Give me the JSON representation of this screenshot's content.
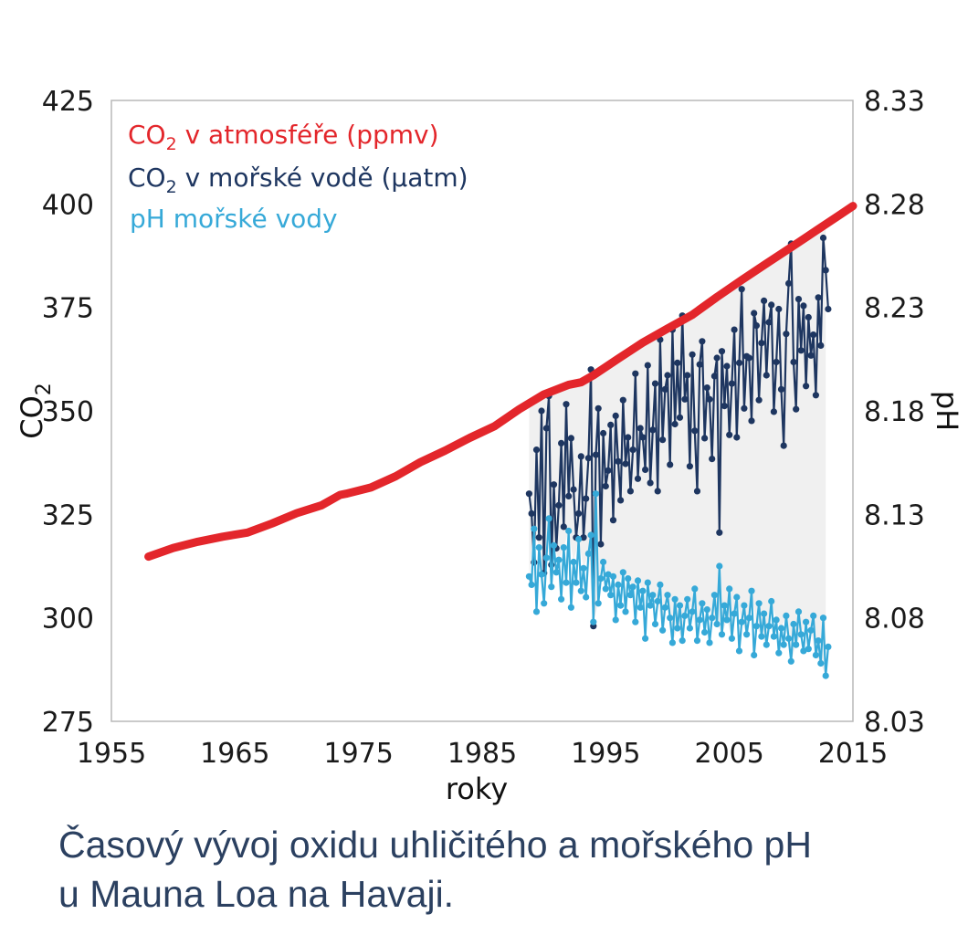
{
  "chart_data": {
    "type": "line",
    "xlabel": "roky",
    "ylabel_left": "CO",
    "ylabel_left_sub": "2",
    "ylabel_right": "pH",
    "xlim": [
      1955,
      2015
    ],
    "ylim_left": [
      275,
      425
    ],
    "ylim_right": [
      8.03,
      8.33
    ],
    "x_ticks": [
      "1955",
      "1965",
      "1975",
      "1985",
      "1995",
      "2005",
      "2015"
    ],
    "y_ticks_left": [
      "275",
      "300",
      "325",
      "350",
      "375",
      "400",
      "425"
    ],
    "y_ticks_right": [
      "8.03",
      "8.08",
      "8.13",
      "8.18",
      "8.23",
      "8.28",
      "8.33"
    ],
    "grid": false,
    "legend_position": "top-left",
    "series": [
      {
        "name": "CO2 v atmosféře (ppmv)",
        "legend_main": "CO",
        "legend_sub": "2",
        "legend_rest": " v atmosféře (ppmv)",
        "color": "#e3262b",
        "axis": "left",
        "points": [
          [
            1958.0,
            314.8
          ],
          [
            1960.0,
            316.9
          ],
          [
            1962.0,
            318.4
          ],
          [
            1964.0,
            319.6
          ],
          [
            1966.0,
            320.6
          ],
          [
            1968.0,
            322.8
          ],
          [
            1970.0,
            325.3
          ],
          [
            1972.0,
            327.2
          ],
          [
            1973.5,
            329.7
          ],
          [
            1974.0,
            330.0
          ],
          [
            1976.0,
            331.5
          ],
          [
            1978.0,
            334.2
          ],
          [
            1980.0,
            337.6
          ],
          [
            1982.0,
            340.4
          ],
          [
            1984.0,
            343.5
          ],
          [
            1986.0,
            346.3
          ],
          [
            1988.0,
            350.4
          ],
          [
            1990.0,
            354.0
          ],
          [
            1992.0,
            356.3
          ],
          [
            1993.0,
            356.9
          ],
          [
            1994.0,
            358.6
          ],
          [
            1996.0,
            362.6
          ],
          [
            1998.0,
            366.5
          ],
          [
            2000.0,
            369.9
          ],
          [
            2002.0,
            373.2
          ],
          [
            2004.0,
            377.5
          ],
          [
            2006.0,
            381.6
          ],
          [
            2008.0,
            385.6
          ],
          [
            2010.0,
            389.5
          ],
          [
            2012.0,
            393.5
          ],
          [
            2014.0,
            397.5
          ],
          [
            2015.0,
            399.5
          ]
        ]
      },
      {
        "name": "CO2 v mořské vodě (µatm)",
        "legend_main": "CO",
        "legend_sub": "2",
        "legend_rest": " v mořské vodě (µatm)",
        "color": "#1e3660",
        "axis": "left",
        "points": [
          [
            1988.8,
            330.0
          ],
          [
            1989.0,
            325.2
          ],
          [
            1989.2,
            313.4
          ],
          [
            1989.4,
            340.6
          ],
          [
            1989.6,
            319.4
          ],
          [
            1989.8,
            350.0
          ],
          [
            1990.0,
            310.8
          ],
          [
            1990.2,
            345.8
          ],
          [
            1990.4,
            353.6
          ],
          [
            1990.6,
            312.8
          ],
          [
            1990.8,
            332.2
          ],
          [
            1991.0,
            316.8
          ],
          [
            1991.2,
            327.2
          ],
          [
            1991.4,
            342.2
          ],
          [
            1991.6,
            322.0
          ],
          [
            1991.8,
            351.6
          ],
          [
            1992.0,
            329.4
          ],
          [
            1992.2,
            343.4
          ],
          [
            1992.4,
            331.0
          ],
          [
            1992.6,
            319.4
          ],
          [
            1992.8,
            325.2
          ],
          [
            1993.0,
            339.0
          ],
          [
            1993.2,
            319.4
          ],
          [
            1993.4,
            328.8
          ],
          [
            1993.6,
            338.6
          ],
          [
            1993.8,
            360.0
          ],
          [
            1994.0,
            298.0
          ],
          [
            1994.2,
            339.4
          ],
          [
            1994.4,
            350.6
          ],
          [
            1994.6,
            317.8
          ],
          [
            1994.8,
            344.6
          ],
          [
            1995.0,
            331.8
          ],
          [
            1995.2,
            335.6
          ],
          [
            1995.4,
            346.6
          ],
          [
            1995.6,
            323.6
          ],
          [
            1995.8,
            348.8
          ],
          [
            1996.0,
            337.8
          ],
          [
            1996.2,
            328.4
          ],
          [
            1996.4,
            352.6
          ],
          [
            1996.6,
            337.2
          ],
          [
            1996.8,
            343.6
          ],
          [
            1997.0,
            330.6
          ],
          [
            1997.2,
            340.6
          ],
          [
            1997.4,
            359.0
          ],
          [
            1997.6,
            333.6
          ],
          [
            1997.8,
            345.8
          ],
          [
            1998.0,
            343.6
          ],
          [
            1998.2,
            335.8
          ],
          [
            1998.4,
            361.0
          ],
          [
            1998.6,
            332.6
          ],
          [
            1998.8,
            345.4
          ],
          [
            1999.0,
            356.6
          ],
          [
            1999.2,
            330.6
          ],
          [
            1999.4,
            367.2
          ],
          [
            1999.6,
            343.0
          ],
          [
            1999.8,
            355.2
          ],
          [
            2000.0,
            358.6
          ],
          [
            2000.2,
            337.0
          ],
          [
            2000.4,
            369.6
          ],
          [
            2000.6,
            346.8
          ],
          [
            2000.8,
            361.6
          ],
          [
            2001.0,
            348.4
          ],
          [
            2001.2,
            373.0
          ],
          [
            2001.4,
            352.8
          ],
          [
            2001.6,
            358.6
          ],
          [
            2001.8,
            336.6
          ],
          [
            2002.0,
            363.6
          ],
          [
            2002.2,
            345.2
          ],
          [
            2002.4,
            330.6
          ],
          [
            2002.6,
            361.2
          ],
          [
            2002.8,
            366.8
          ],
          [
            2003.0,
            343.4
          ],
          [
            2003.2,
            355.6
          ],
          [
            2003.4,
            352.8
          ],
          [
            2003.6,
            338.4
          ],
          [
            2003.8,
            358.4
          ],
          [
            2004.0,
            362.8
          ],
          [
            2004.2,
            320.6
          ],
          [
            2004.4,
            364.4
          ],
          [
            2004.6,
            351.2
          ],
          [
            2004.8,
            360.8
          ],
          [
            2005.0,
            344.2
          ],
          [
            2005.2,
            356.6
          ],
          [
            2005.4,
            369.6
          ],
          [
            2005.6,
            343.6
          ],
          [
            2005.8,
            361.6
          ],
          [
            2006.0,
            379.4
          ],
          [
            2006.2,
            350.6
          ],
          [
            2006.4,
            363.2
          ],
          [
            2006.6,
            362.8
          ],
          [
            2006.8,
            347.6
          ],
          [
            2007.0,
            373.6
          ],
          [
            2007.2,
            370.6
          ],
          [
            2007.4,
            352.6
          ],
          [
            2007.6,
            366.4
          ],
          [
            2007.8,
            376.6
          ],
          [
            2008.0,
            358.6
          ],
          [
            2008.2,
            371.4
          ],
          [
            2008.4,
            375.6
          ],
          [
            2008.6,
            349.8
          ],
          [
            2008.8,
            361.8
          ],
          [
            2009.0,
            374.6
          ],
          [
            2009.2,
            355.2
          ],
          [
            2009.4,
            341.6
          ],
          [
            2009.6,
            368.6
          ],
          [
            2009.8,
            380.8
          ],
          [
            2010.0,
            390.4
          ],
          [
            2010.2,
            361.8
          ],
          [
            2010.4,
            350.4
          ],
          [
            2010.6,
            377.0
          ],
          [
            2010.8,
            364.6
          ],
          [
            2011.0,
            375.4
          ],
          [
            2011.2,
            356.0
          ],
          [
            2011.4,
            372.6
          ],
          [
            2011.6,
            363.4
          ],
          [
            2011.8,
            368.4
          ],
          [
            2012.0,
            353.8
          ],
          [
            2012.2,
            377.4
          ],
          [
            2012.4,
            365.8
          ],
          [
            2012.6,
            391.8
          ],
          [
            2012.8,
            384.0
          ],
          [
            2013.0,
            374.6
          ]
        ]
      },
      {
        "name": "pH mořské vody",
        "color": "#36a9d8",
        "axis": "right",
        "points": [
          [
            1988.8,
            8.1
          ],
          [
            1989.0,
            8.096
          ],
          [
            1989.2,
            8.123
          ],
          [
            1989.4,
            8.083
          ],
          [
            1989.6,
            8.114
          ],
          [
            1989.8,
            8.101
          ],
          [
            1990.0,
            8.087
          ],
          [
            1990.2,
            8.109
          ],
          [
            1990.4,
            8.128
          ],
          [
            1990.6,
            8.095
          ],
          [
            1990.8,
            8.115
          ],
          [
            1991.0,
            8.102
          ],
          [
            1991.2,
            8.108
          ],
          [
            1991.4,
            8.089
          ],
          [
            1991.6,
            8.114
          ],
          [
            1991.8,
            8.097
          ],
          [
            1992.0,
            8.122
          ],
          [
            1992.2,
            8.085
          ],
          [
            1992.4,
            8.107
          ],
          [
            1992.6,
            8.097
          ],
          [
            1992.8,
            8.118
          ],
          [
            1993.0,
            8.093
          ],
          [
            1993.2,
            8.104
          ],
          [
            1993.4,
            8.09
          ],
          [
            1993.6,
            8.111
          ],
          [
            1993.8,
            8.12
          ],
          [
            1994.0,
            8.078
          ],
          [
            1994.2,
            8.14
          ],
          [
            1994.4,
            8.087
          ],
          [
            1994.6,
            8.099
          ],
          [
            1994.8,
            8.107
          ],
          [
            1995.0,
            8.094
          ],
          [
            1995.2,
            8.101
          ],
          [
            1995.4,
            8.091
          ],
          [
            1995.6,
            8.1
          ],
          [
            1995.8,
            8.079
          ],
          [
            1996.0,
            8.096
          ],
          [
            1996.2,
            8.086
          ],
          [
            1996.4,
            8.102
          ],
          [
            1996.6,
            8.083
          ],
          [
            1996.8,
            8.099
          ],
          [
            1997.0,
            8.091
          ],
          [
            1997.2,
            8.095
          ],
          [
            1997.4,
            8.078
          ],
          [
            1997.6,
            8.098
          ],
          [
            1997.8,
            8.085
          ],
          [
            1998.0,
            8.093
          ],
          [
            1998.2,
            8.07
          ],
          [
            1998.4,
            8.097
          ],
          [
            1998.6,
            8.086
          ],
          [
            1998.8,
            8.091
          ],
          [
            1999.0,
            8.077
          ],
          [
            1999.2,
            8.088
          ],
          [
            1999.4,
            8.096
          ],
          [
            1999.6,
            8.074
          ],
          [
            1999.8,
            8.085
          ],
          [
            2000.0,
            8.091
          ],
          [
            2000.2,
            8.08
          ],
          [
            2000.4,
            8.068
          ],
          [
            2000.6,
            8.089
          ],
          [
            2000.8,
            8.075
          ],
          [
            2001.0,
            8.086
          ],
          [
            2001.2,
            8.069
          ],
          [
            2001.4,
            8.081
          ],
          [
            2001.6,
            8.089
          ],
          [
            2001.8,
            8.075
          ],
          [
            2002.0,
            8.083
          ],
          [
            2002.2,
            8.094
          ],
          [
            2002.4,
            8.069
          ],
          [
            2002.6,
            8.079
          ],
          [
            2002.8,
            8.087
          ],
          [
            2003.0,
            8.073
          ],
          [
            2003.2,
            8.084
          ],
          [
            2003.4,
            8.068
          ],
          [
            2003.6,
            8.08
          ],
          [
            2003.8,
            8.091
          ],
          [
            2004.0,
            8.077
          ],
          [
            2004.2,
            8.105
          ],
          [
            2004.4,
            8.072
          ],
          [
            2004.6,
            8.086
          ],
          [
            2004.8,
            8.079
          ],
          [
            2005.0,
            8.094
          ],
          [
            2005.2,
            8.07
          ],
          [
            2005.4,
            8.082
          ],
          [
            2005.6,
            8.09
          ],
          [
            2005.8,
            8.064
          ],
          [
            2006.0,
            8.078
          ],
          [
            2006.2,
            8.086
          ],
          [
            2006.4,
            8.072
          ],
          [
            2006.6,
            8.08
          ],
          [
            2006.8,
            8.093
          ],
          [
            2007.0,
            8.062
          ],
          [
            2007.2,
            8.076
          ],
          [
            2007.4,
            8.087
          ],
          [
            2007.6,
            8.071
          ],
          [
            2007.8,
            8.082
          ],
          [
            2008.0,
            8.067
          ],
          [
            2008.2,
            8.076
          ],
          [
            2008.4,
            8.088
          ],
          [
            2008.6,
            8.071
          ],
          [
            2008.8,
            8.079
          ],
          [
            2009.0,
            8.063
          ],
          [
            2009.2,
            8.075
          ],
          [
            2009.4,
            8.067
          ],
          [
            2009.6,
            8.081
          ],
          [
            2009.8,
            8.07
          ],
          [
            2010.0,
            8.059
          ],
          [
            2010.2,
            8.077
          ],
          [
            2010.4,
            8.067
          ],
          [
            2010.6,
            8.083
          ],
          [
            2010.8,
            8.072
          ],
          [
            2011.0,
            8.064
          ],
          [
            2011.2,
            8.078
          ],
          [
            2011.4,
            8.065
          ],
          [
            2011.6,
            8.074
          ],
          [
            2011.8,
            8.081
          ],
          [
            2012.0,
            8.062
          ],
          [
            2012.2,
            8.069
          ],
          [
            2012.4,
            8.058
          ],
          [
            2012.6,
            8.08
          ],
          [
            2012.8,
            8.052
          ],
          [
            2013.0,
            8.066
          ]
        ]
      }
    ],
    "gap_fill_color": "#f0f0f0"
  },
  "caption": {
    "line1": "Časový vývoj oxidu uhličitého a mořského pH",
    "line2": "u Mauna Loa na Havaji."
  }
}
